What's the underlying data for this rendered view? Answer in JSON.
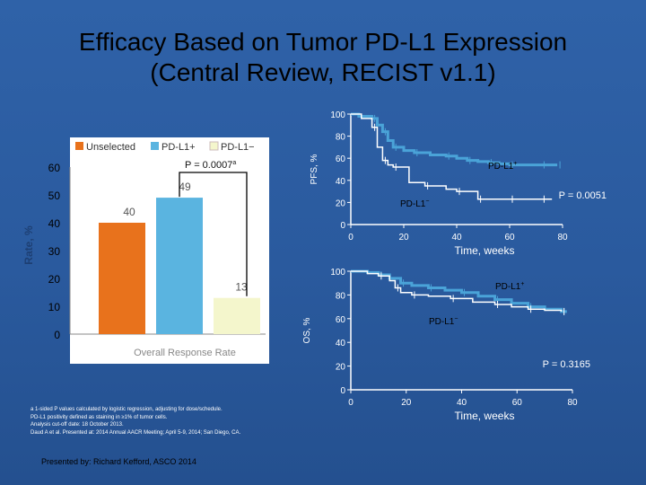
{
  "slide": {
    "title_line1": "Efficacy Based on Tumor PD-L1 Expression",
    "title_line2": "(Central Review, RECIST v1.1)",
    "footnotes": [
      "a 1-sided P values calculated by logistic regression, adjusting for dose/schedule.",
      "PD-L1 positivity defined as staining in ≥1% of tumor cells.",
      "Analysis cut-off date: 18 October 2013.",
      "Daud A et al. Presented at: 2014 Annual AACR Meeting; April 5-9, 2014; San Diego, CA."
    ],
    "presenter": "Presented by: Richard Kefford, ASCO 2014"
  },
  "colors": {
    "unselected": "#e8721c",
    "pdl1_pos": "#5ab4e0",
    "pdl1_neg": "#f4f6cc",
    "km_line": "#4aa3d8"
  },
  "chart_data": [
    {
      "type": "bar",
      "title": "",
      "xlabel": "Overall Response Rate",
      "ylabel": "Rate, %",
      "ylim": [
        0,
        60
      ],
      "yticks": [
        0,
        10,
        20,
        30,
        40,
        50,
        60
      ],
      "categories": [
        "Unselected",
        "PD-L1+",
        "PD-L1−"
      ],
      "values": [
        40,
        49,
        13
      ],
      "data_labels": [
        "40",
        "49",
        "13"
      ],
      "legend": [
        "Unselected",
        "PD-L1+",
        "PD-L1−"
      ],
      "legend_position": "top",
      "annotation": "P = 0.0007",
      "annotation_superscript": "a"
    },
    {
      "type": "line",
      "name": "PFS",
      "xlabel": "Time, weeks",
      "ylabel": "PFS, %",
      "xlim": [
        0,
        80
      ],
      "ylim": [
        0,
        100
      ],
      "xticks": [
        0,
        20,
        40,
        60,
        80
      ],
      "yticks": [
        0,
        20,
        40,
        60,
        80,
        100
      ],
      "p_value": "P = 0.0051",
      "series": [
        {
          "name": "PD-L1+",
          "label": "PD-L1",
          "label_sup": "+",
          "x": [
            0,
            3,
            8,
            10,
            12,
            14,
            16,
            20,
            24,
            30,
            36,
            40,
            44,
            48,
            52,
            56,
            60,
            66,
            72,
            76,
            78
          ],
          "y": [
            100,
            98,
            96,
            90,
            84,
            76,
            70,
            67,
            65,
            63,
            62,
            60,
            58,
            57,
            56,
            55,
            54,
            54,
            54,
            54,
            54
          ]
        },
        {
          "name": "PD-L1−",
          "label": "PD-L1",
          "label_sup": "−",
          "x": [
            0,
            4,
            8,
            10,
            12,
            14,
            16,
            22,
            28,
            36,
            40,
            44,
            48,
            52,
            60,
            66,
            72,
            76
          ],
          "y": [
            100,
            96,
            88,
            70,
            58,
            54,
            52,
            38,
            35,
            32,
            30,
            30,
            23,
            23,
            23,
            23,
            23,
            23
          ]
        }
      ]
    },
    {
      "type": "line",
      "name": "OS",
      "xlabel": "Time, weeks",
      "ylabel": "OS, %",
      "xlim": [
        0,
        80
      ],
      "ylim": [
        0,
        100
      ],
      "xticks": [
        0,
        20,
        40,
        60,
        80
      ],
      "yticks": [
        0,
        20,
        40,
        60,
        80,
        100
      ],
      "p_value": "P = 0.3165",
      "series": [
        {
          "name": "PD-L1+",
          "label": "PD-L1",
          "label_sup": "+",
          "x": [
            0,
            6,
            10,
            14,
            18,
            22,
            28,
            34,
            40,
            46,
            52,
            58,
            64,
            70,
            76,
            78
          ],
          "y": [
            100,
            99,
            97,
            94,
            90,
            88,
            86,
            84,
            82,
            79,
            76,
            73,
            70,
            68,
            66,
            66
          ]
        },
        {
          "name": "PD-L1−",
          "label": "PD-L1",
          "label_sup": "−",
          "x": [
            0,
            6,
            10,
            14,
            16,
            18,
            22,
            28,
            36,
            44,
            52,
            58,
            64,
            70,
            76
          ],
          "y": [
            100,
            98,
            96,
            92,
            86,
            82,
            80,
            79,
            77,
            74,
            72,
            70,
            68,
            67,
            66
          ]
        }
      ]
    }
  ]
}
